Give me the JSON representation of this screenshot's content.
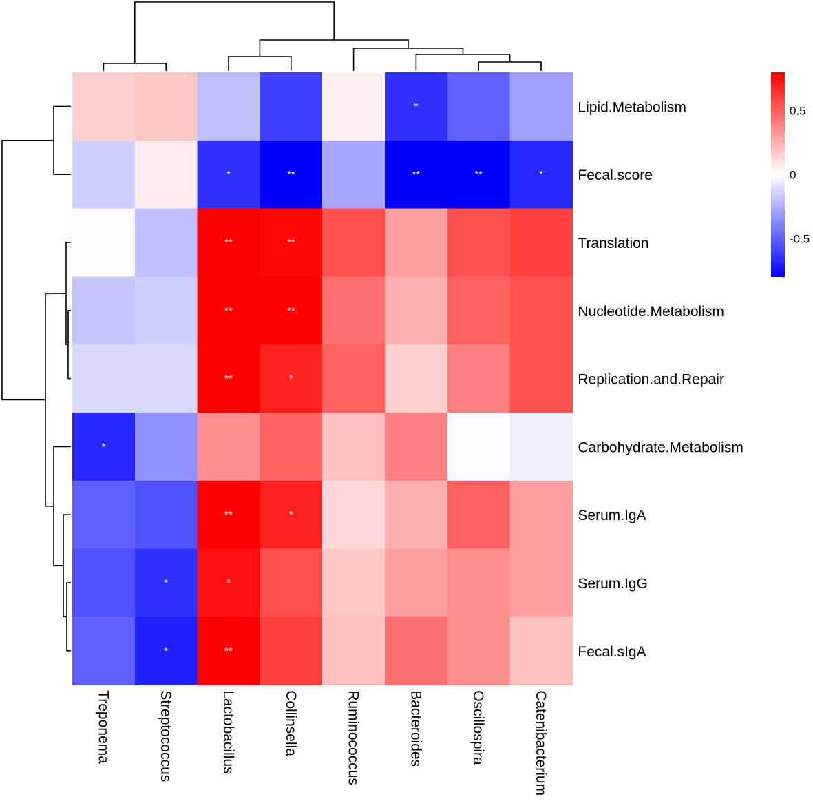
{
  "chart_data": {
    "type": "heatmap",
    "rows": [
      "Lipid.Metabolism",
      "Fecal.score",
      "Translation",
      "Nucleotide.Metabolism",
      "Replication.and.Repair",
      "Carbohydrate.Metabolism",
      "Serum.IgA",
      "Serum.IgG",
      "Fecal.sIgA"
    ],
    "columns": [
      "Treponema",
      "Streptococcus",
      "Lactobacillus",
      "Collinsella",
      "Ruminococcus",
      "Bacteroides",
      "Oscillospira",
      "Catenibacterium"
    ],
    "values": [
      [
        0.15,
        0.18,
        -0.2,
        -0.6,
        0.05,
        -0.65,
        -0.5,
        -0.3
      ],
      [
        -0.15,
        0.06,
        -0.65,
        -0.9,
        -0.28,
        -0.8,
        -0.92,
        -0.68
      ],
      [
        0.02,
        -0.2,
        0.8,
        0.78,
        0.55,
        0.3,
        0.55,
        0.6
      ],
      [
        -0.18,
        -0.15,
        0.85,
        0.8,
        0.45,
        0.25,
        0.5,
        0.55
      ],
      [
        -0.12,
        -0.12,
        0.8,
        0.7,
        0.5,
        0.15,
        0.4,
        0.55
      ],
      [
        -0.68,
        -0.35,
        0.35,
        0.5,
        0.2,
        0.4,
        -0.02,
        -0.05
      ],
      [
        -0.5,
        -0.55,
        0.82,
        0.7,
        0.12,
        0.25,
        0.5,
        0.3
      ],
      [
        -0.55,
        -0.65,
        0.75,
        0.55,
        0.18,
        0.3,
        0.35,
        0.3
      ],
      [
        -0.5,
        -0.7,
        0.88,
        0.6,
        0.2,
        0.45,
        0.35,
        0.2
      ]
    ],
    "significance": [
      [
        "",
        "",
        "",
        "",
        "",
        "*",
        "",
        ""
      ],
      [
        "",
        "",
        "*",
        "**",
        "",
        "**",
        "**",
        "*"
      ],
      [
        "",
        "",
        "**",
        "**",
        "",
        "",
        "",
        ""
      ],
      [
        "",
        "",
        "**",
        "**",
        "",
        "",
        "",
        ""
      ],
      [
        "",
        "",
        "**",
        "*",
        "",
        "",
        "",
        ""
      ],
      [
        "*",
        "",
        "",
        "",
        "",
        "",
        "",
        ""
      ],
      [
        "",
        "",
        "**",
        "*",
        "",
        "",
        "",
        ""
      ],
      [
        "",
        "*",
        "*",
        "",
        "",
        "",
        "",
        ""
      ],
      [
        "",
        "*",
        "**",
        "",
        "",
        "",
        "",
        ""
      ]
    ],
    "color_scale": {
      "min": -0.8,
      "max": 0.8,
      "low_color": "#0000ff",
      "mid_color": "#ffffff",
      "high_color": "#ff0000",
      "ticks": [
        {
          "value": 0.5,
          "label": "0.5"
        },
        {
          "value": 0,
          "label": "0"
        },
        {
          "value": -0.5,
          "label": "-0.5"
        }
      ]
    },
    "legend_position": "top-right"
  }
}
